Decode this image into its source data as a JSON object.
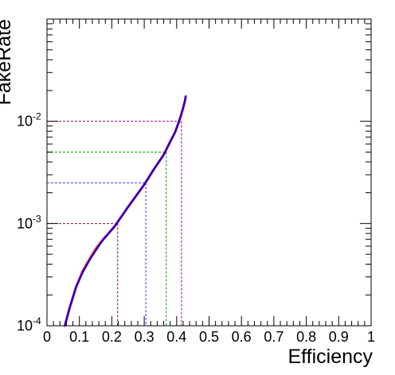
{
  "chart_data": {
    "type": "line",
    "xlabel": "Efficiency",
    "ylabel": "FakeRate",
    "xlim": [
      0,
      1
    ],
    "ylim": [
      0.0001,
      0.1
    ],
    "y_scale": "log",
    "grid": false,
    "x_ticks": [
      "0",
      "0.1",
      "0.2",
      "0.3",
      "0.4",
      "0.5",
      "0.6",
      "0.7",
      "0.8",
      "0.9",
      "1"
    ],
    "y_ticks": [
      {
        "base": "10",
        "exp": "-4",
        "value": 0.0001
      },
      {
        "base": "10",
        "exp": "-3",
        "value": 0.001
      },
      {
        "base": "10",
        "exp": "-2",
        "value": 0.01
      }
    ],
    "series": [
      {
        "color": "#ff0000",
        "x": [
          0.055,
          0.07,
          0.09,
          0.11,
          0.13,
          0.15,
          0.17,
          0.19,
          0.21,
          0.25,
          0.3,
          0.33,
          0.36,
          0.38,
          0.395,
          0.405,
          0.413,
          0.42,
          0.425,
          0.428
        ],
        "y": [
          0.0001,
          0.00015,
          0.00024,
          0.00034,
          0.00044,
          0.00056,
          0.00068,
          0.0008,
          0.00095,
          0.00145,
          0.0024,
          0.0034,
          0.0047,
          0.0063,
          0.0078,
          0.0095,
          0.0113,
          0.0135,
          0.0155,
          0.0175
        ]
      },
      {
        "color": "#0000ff",
        "x": [
          0.055,
          0.07,
          0.09,
          0.11,
          0.13,
          0.15,
          0.17,
          0.19,
          0.21,
          0.25,
          0.3,
          0.33,
          0.36,
          0.38,
          0.395,
          0.405,
          0.413,
          0.42,
          0.425,
          0.428
        ],
        "y": [
          0.0001,
          0.00015,
          0.00024,
          0.00033,
          0.00043,
          0.00054,
          0.00067,
          0.0008,
          0.00095,
          0.00145,
          0.0024,
          0.0034,
          0.0047,
          0.0063,
          0.0078,
          0.0095,
          0.0113,
          0.0135,
          0.0155,
          0.0175
        ]
      }
    ],
    "reference_lines": [
      {
        "color": "#990099",
        "fakerate": 0.01,
        "efficiency": 0.415
      },
      {
        "color": "#009900",
        "fakerate": 0.005,
        "efficiency": 0.368
      },
      {
        "color": "#3333ff",
        "fakerate": 0.0025,
        "efficiency": 0.305
      },
      {
        "color": "#990033",
        "fakerate": 0.001,
        "efficiency": 0.218
      }
    ]
  }
}
